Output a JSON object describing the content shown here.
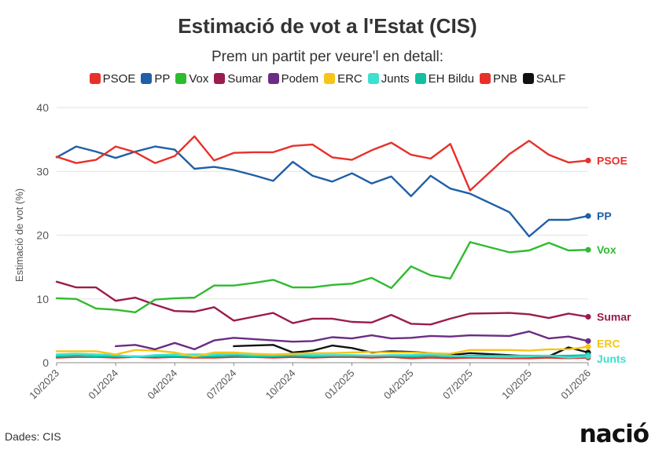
{
  "header": {
    "title": "Estimació de vot a l'Estat (CIS)",
    "subtitle": "Prem un partit per veure'l en detall:"
  },
  "footer": {
    "source": "Dades: CIS",
    "logo_text": "nació"
  },
  "chart_data": {
    "type": "line",
    "title": "Estimació de vot a l'Estat (CIS)",
    "ylabel": "Estimació de vot (%)",
    "xlabel": "",
    "ylim": [
      0,
      40
    ],
    "yticks": [
      0,
      10,
      20,
      30,
      40
    ],
    "xlim": [
      "2023-10-01",
      "2026-01-01"
    ],
    "xticks": [
      "10/2023",
      "01/2024",
      "04/2024",
      "07/2024",
      "10/2024",
      "01/2025",
      "04/2025",
      "07/2025",
      "10/2025",
      "01/2026"
    ],
    "grid": "horizontal",
    "legend_position": "top",
    "x": [
      "2023-10",
      "2023-11",
      "2023-12",
      "2024-01",
      "2024-02",
      "2024-03",
      "2024-04",
      "2024-05",
      "2024-06",
      "2024-07",
      "2024-08",
      "2024-09",
      "2024-10",
      "2024-11",
      "2024-12",
      "2025-01",
      "2025-02",
      "2025-03",
      "2025-04",
      "2025-05",
      "2025-06",
      "2025-07",
      "2025-09",
      "2025-10",
      "2025-11",
      "2025-12",
      "2026-01"
    ],
    "series": [
      {
        "name": "PSOE",
        "color": "#e8302a",
        "end_label": "PSOE",
        "values": [
          32.3,
          31.3,
          31.8,
          33.9,
          33.0,
          31.3,
          32.4,
          35.5,
          31.7,
          32.9,
          33.0,
          33.0,
          34.0,
          34.2,
          32.2,
          31.8,
          33.3,
          34.5,
          32.6,
          32.0,
          34.3,
          27.0,
          32.7,
          34.8,
          32.6,
          31.4,
          31.7
        ]
      },
      {
        "name": "PP",
        "color": "#1f5fa6",
        "end_label": "PP",
        "values": [
          32.2,
          33.9,
          33.1,
          32.1,
          33.1,
          33.9,
          33.4,
          30.4,
          30.7,
          30.2,
          29.4,
          28.5,
          31.5,
          29.3,
          28.4,
          29.7,
          28.1,
          29.2,
          26.1,
          29.3,
          27.3,
          26.5,
          23.6,
          19.8,
          22.4,
          22.4,
          23.0
        ]
      },
      {
        "name": "Vox",
        "color": "#2fbb2f",
        "end_label": "Vox",
        "values": [
          10.1,
          10.0,
          8.5,
          8.3,
          7.9,
          9.9,
          10.1,
          10.2,
          12.1,
          12.1,
          12.5,
          13.0,
          11.8,
          11.8,
          12.2,
          12.4,
          13.3,
          11.7,
          15.1,
          13.7,
          13.2,
          18.9,
          17.3,
          17.6,
          18.8,
          17.6,
          17.7
        ]
      },
      {
        "name": "Sumar",
        "color": "#9b1c4e",
        "end_label": "Sumar",
        "values": [
          12.7,
          11.8,
          11.8,
          9.7,
          10.2,
          9.1,
          8.1,
          8.0,
          8.7,
          6.6,
          7.2,
          7.8,
          6.2,
          6.9,
          6.9,
          6.4,
          6.3,
          7.5,
          6.1,
          6.0,
          6.9,
          7.7,
          7.8,
          7.6,
          7.0,
          7.7,
          7.2
        ]
      },
      {
        "name": "Podem",
        "color": "#6b2d84",
        "values": [
          null,
          null,
          null,
          2.6,
          2.8,
          2.1,
          3.1,
          2.1,
          3.5,
          3.9,
          3.7,
          3.5,
          3.3,
          3.4,
          4.0,
          3.8,
          4.3,
          3.8,
          3.9,
          4.2,
          4.1,
          4.3,
          4.2,
          4.9,
          3.8,
          4.1,
          3.4
        ]
      },
      {
        "name": "ERC",
        "color": "#f5c518",
        "end_label": "ERC",
        "values": [
          1.8,
          1.8,
          1.8,
          1.3,
          2.0,
          1.9,
          1.6,
          1.0,
          1.6,
          1.6,
          1.4,
          1.3,
          1.4,
          1.5,
          1.5,
          1.6,
          1.7,
          1.6,
          1.6,
          1.5,
          1.4,
          2.0,
          2.0,
          1.9,
          2.1,
          2.1,
          2.5
        ]
      },
      {
        "name": "Junts",
        "color": "#3de0d0",
        "end_label": "Junts",
        "values": [
          1.3,
          1.4,
          1.3,
          1.2,
          0.9,
          1.2,
          1.3,
          1.3,
          1.3,
          1.4,
          1.2,
          1.2,
          1.3,
          1.2,
          1.2,
          1.2,
          1.1,
          1.2,
          1.2,
          1.3,
          1.1,
          1.0,
          0.9,
          1.0,
          1.1,
          0.8,
          1.0
        ]
      },
      {
        "name": "EH Bildu",
        "color": "#12bfa0",
        "values": [
          1.0,
          1.1,
          1.0,
          1.0,
          1.0,
          1.0,
          1.0,
          0.9,
          1.0,
          1.1,
          1.0,
          1.0,
          1.1,
          1.0,
          1.1,
          1.1,
          1.1,
          1.1,
          1.0,
          1.1,
          1.0,
          1.1,
          1.1,
          1.1,
          1.1,
          1.1,
          1.2
        ]
      },
      {
        "name": "PNB",
        "color": "#e8302a",
        "values": [
          0.8,
          0.9,
          0.9,
          0.8,
          0.9,
          0.8,
          0.9,
          0.8,
          0.8,
          0.9,
          0.9,
          0.8,
          0.9,
          0.8,
          0.9,
          0.9,
          0.8,
          0.9,
          0.7,
          0.8,
          0.7,
          0.8,
          0.7,
          0.7,
          0.8,
          0.7,
          0.8
        ]
      },
      {
        "name": "SALF",
        "color": "#111111",
        "values": [
          null,
          null,
          null,
          null,
          null,
          null,
          null,
          null,
          null,
          2.6,
          2.7,
          2.8,
          1.6,
          1.9,
          2.7,
          2.3,
          1.6,
          1.8,
          1.7,
          1.5,
          1.2,
          1.5,
          1.2,
          1.0,
          1.0,
          2.4,
          1.6
        ]
      }
    ]
  }
}
